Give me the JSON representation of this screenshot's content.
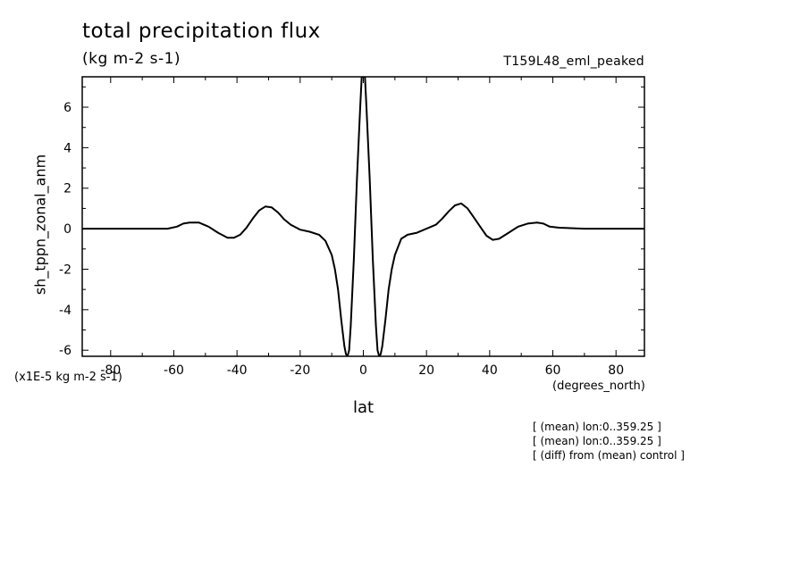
{
  "chart_data": {
    "type": "line",
    "title": "total precipitation flux",
    "subtitle": "(kg m-2 s-1)",
    "run_label": "T159L48_eml_peaked",
    "xlabel": "lat",
    "xlabel_units": "(degrees_north)",
    "ylabel": "sh_tppn_zonal_anm",
    "y_scale_note": "(x1E-5 kg m-2 s-1)",
    "xlim": [
      -89,
      89
    ],
    "ylim": [
      -6.3,
      7.5
    ],
    "x_ticks": [
      -80,
      -60,
      -40,
      -20,
      0,
      20,
      40,
      60,
      80
    ],
    "x_tick_labels": [
      "-80",
      "-60",
      "-40",
      "-20",
      "0",
      "20",
      "40",
      "60",
      "80"
    ],
    "y_ticks": [
      -6,
      -4,
      -2,
      0,
      2,
      4,
      6
    ],
    "y_tick_labels": [
      "-6",
      "-4",
      "-2",
      "0",
      "2",
      "4",
      "6"
    ],
    "grid": false,
    "series": [
      {
        "color": "#000000",
        "x": [
          -89,
          -80,
          -70,
          -62,
          -59,
          -57,
          -55,
          -52,
          -49,
          -46,
          -43,
          -41,
          -39,
          -37,
          -35,
          -33,
          -31,
          -29,
          -27,
          -25,
          -23,
          -20,
          -17,
          -14,
          -12,
          -10,
          -9,
          -8,
          -7,
          -6,
          -5.5,
          -5,
          -4.5,
          -4,
          -3,
          -2,
          -1,
          -0.5,
          0,
          0.5,
          1,
          2,
          3,
          4,
          4.5,
          5,
          5.5,
          6,
          7,
          8,
          9,
          10,
          12,
          14,
          17,
          20,
          23,
          25,
          27,
          29,
          31,
          33,
          35,
          37,
          39,
          41,
          43,
          46,
          49,
          52,
          55,
          57,
          59,
          62,
          70,
          80,
          89
        ],
        "y": [
          0.0,
          0.0,
          0.0,
          0.0,
          0.1,
          0.25,
          0.3,
          0.3,
          0.1,
          -0.2,
          -0.45,
          -0.45,
          -0.3,
          0.05,
          0.5,
          0.9,
          1.1,
          1.05,
          0.8,
          0.45,
          0.2,
          -0.05,
          -0.15,
          -0.3,
          -0.6,
          -1.3,
          -2.0,
          -3.0,
          -4.5,
          -5.8,
          -6.2,
          -6.3,
          -6.0,
          -4.8,
          -1.5,
          2.5,
          6.0,
          7.5,
          7.5,
          7.5,
          6.0,
          2.5,
          -1.5,
          -4.8,
          -6.0,
          -6.3,
          -6.2,
          -5.8,
          -4.5,
          -3.0,
          -2.0,
          -1.3,
          -0.5,
          -0.3,
          -0.2,
          0.0,
          0.2,
          0.5,
          0.85,
          1.15,
          1.25,
          1.0,
          0.55,
          0.1,
          -0.35,
          -0.55,
          -0.5,
          -0.2,
          0.1,
          0.25,
          0.3,
          0.25,
          0.1,
          0.05,
          0.0,
          0.0,
          0.0
        ]
      }
    ]
  },
  "notes": [
    "[ (mean) lon:0..359.25 ]",
    "[ (mean) lon:0..359.25 ]",
    "[ (diff) from (mean) control ]"
  ]
}
